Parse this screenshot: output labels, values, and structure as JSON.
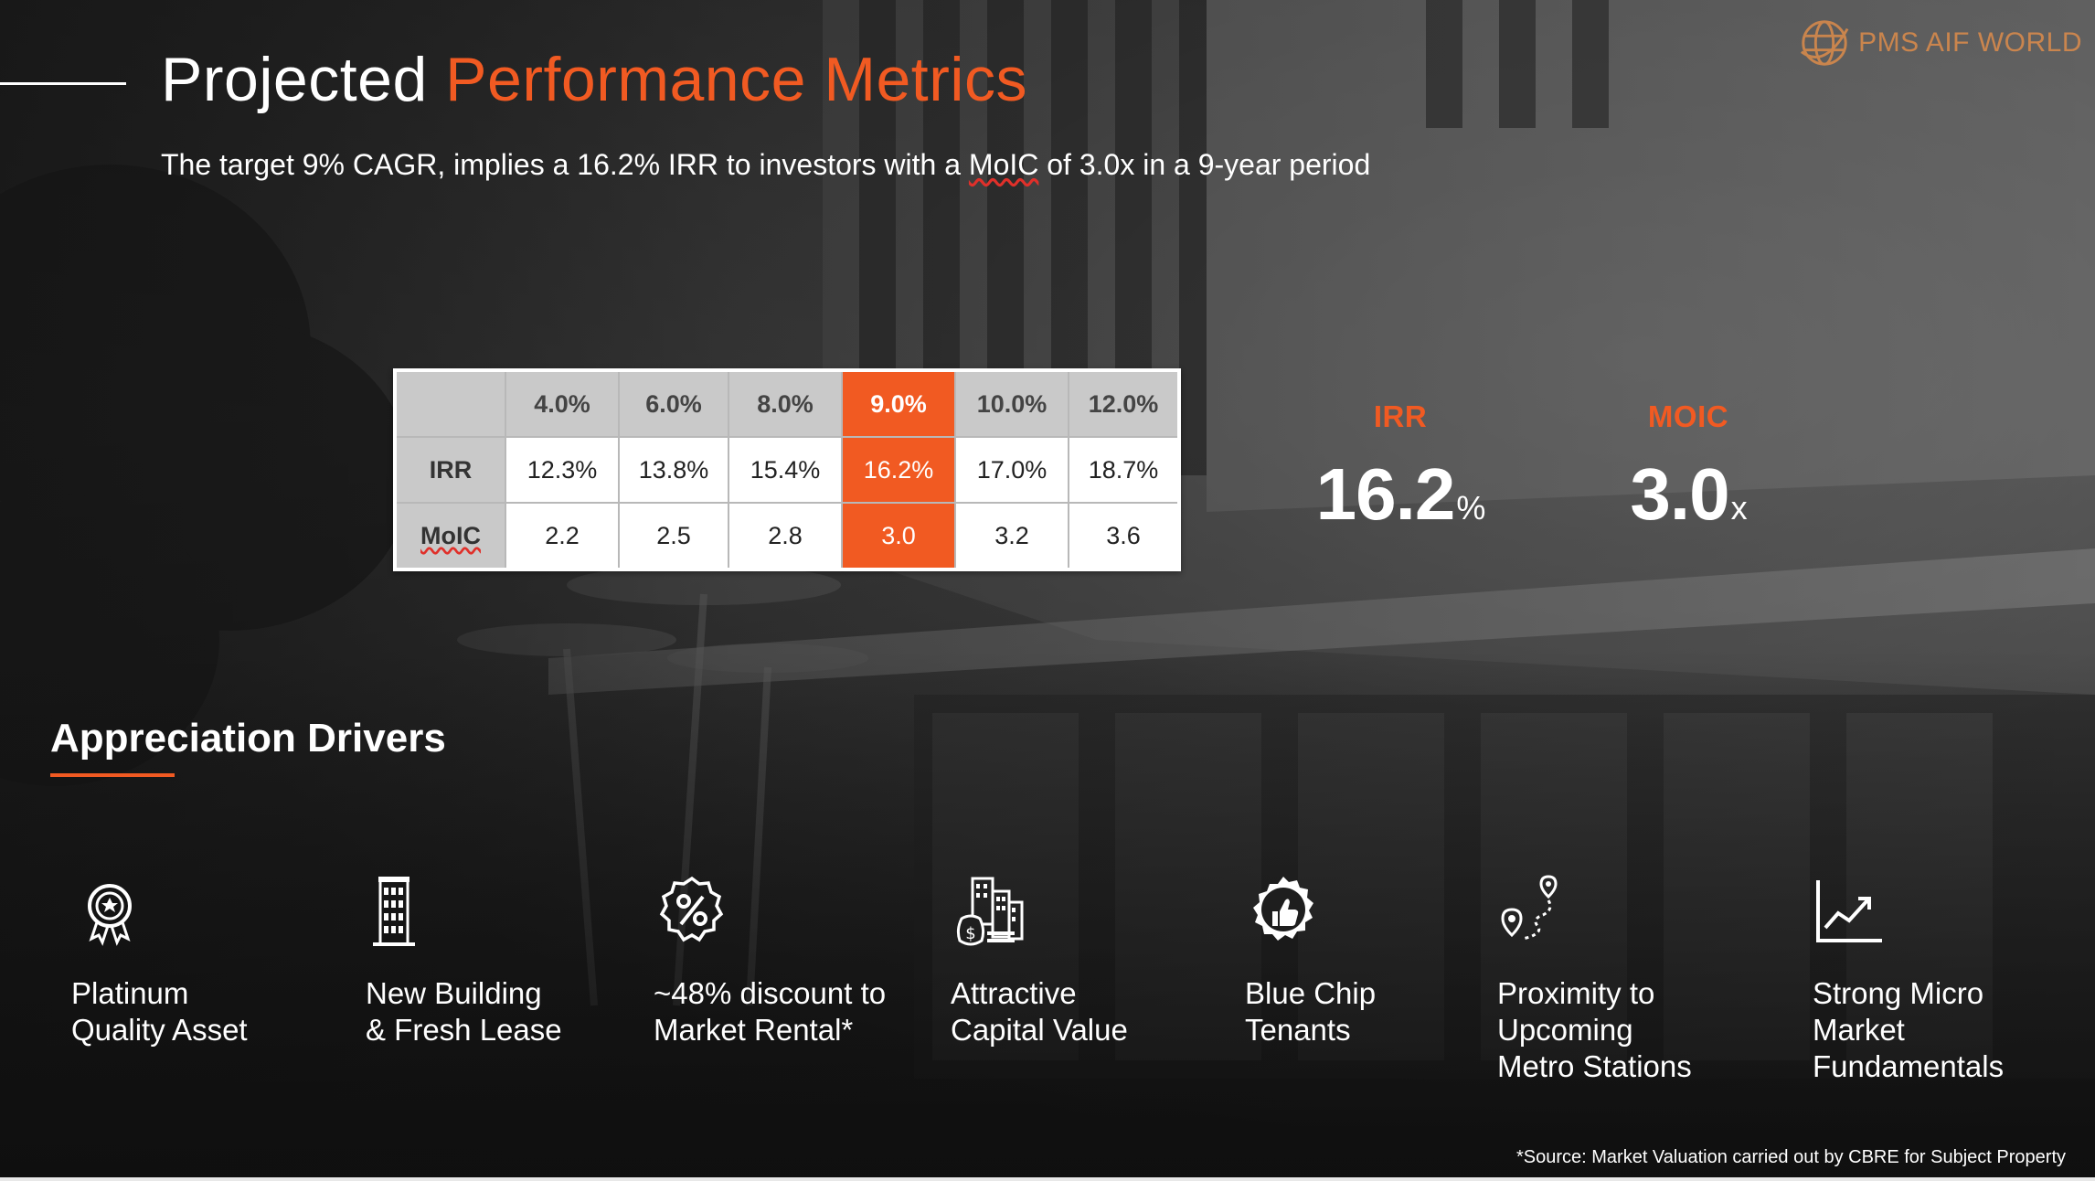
{
  "header": {
    "title_main": "Projected ",
    "title_accent": "Performance Metrics",
    "subtitle_pre": "The target 9% CAGR, implies a 16.2% IRR to investors with a ",
    "subtitle_moic": "MoIC",
    "subtitle_post": " of 3.0x in a 9-year period"
  },
  "logo": {
    "text": "PMS AIF WORLD",
    "icon": "globe-icon"
  },
  "table": {
    "columns": [
      "4.0%",
      "6.0%",
      "8.0%",
      "9.0%",
      "10.0%",
      "12.0%"
    ],
    "highlight_column": 3,
    "rows": [
      {
        "label": "IRR",
        "values": [
          "12.3%",
          "13.8%",
          "15.4%",
          "16.2%",
          "17.0%",
          "18.7%"
        ]
      },
      {
        "label": "MoIC",
        "values": [
          "2.2",
          "2.5",
          "2.8",
          "3.0",
          "3.2",
          "3.6"
        ]
      }
    ]
  },
  "metrics": {
    "irr": {
      "label": "IRR",
      "value": "16.2",
      "unit": "%"
    },
    "moic": {
      "label": "MOIC",
      "value": "3.0",
      "unit": "x"
    }
  },
  "drivers": {
    "heading": "Appreciation Drivers",
    "items": [
      {
        "icon": "award-badge-icon",
        "label": "Platinum\nQuality Asset"
      },
      {
        "icon": "building-icon",
        "label": "New Building\n& Fresh Lease"
      },
      {
        "icon": "percent-badge-icon",
        "label": "~48% discount to\nMarket Rental*"
      },
      {
        "icon": "city-money-icon",
        "label": "Attractive\nCapital Value"
      },
      {
        "icon": "thumbs-up-icon",
        "label": "Blue Chip\nTenants"
      },
      {
        "icon": "route-pins-icon",
        "label": "Proximity to\nUpcoming\nMetro Stations"
      },
      {
        "icon": "growth-chart-icon",
        "label": "Strong Micro\nMarket\nFundamentals"
      }
    ]
  },
  "footnote": "*Source: Market Valuation carried out by CBRE for Subject Property",
  "colors": {
    "accent": "#f15a22",
    "logo": "#e58f4a"
  }
}
